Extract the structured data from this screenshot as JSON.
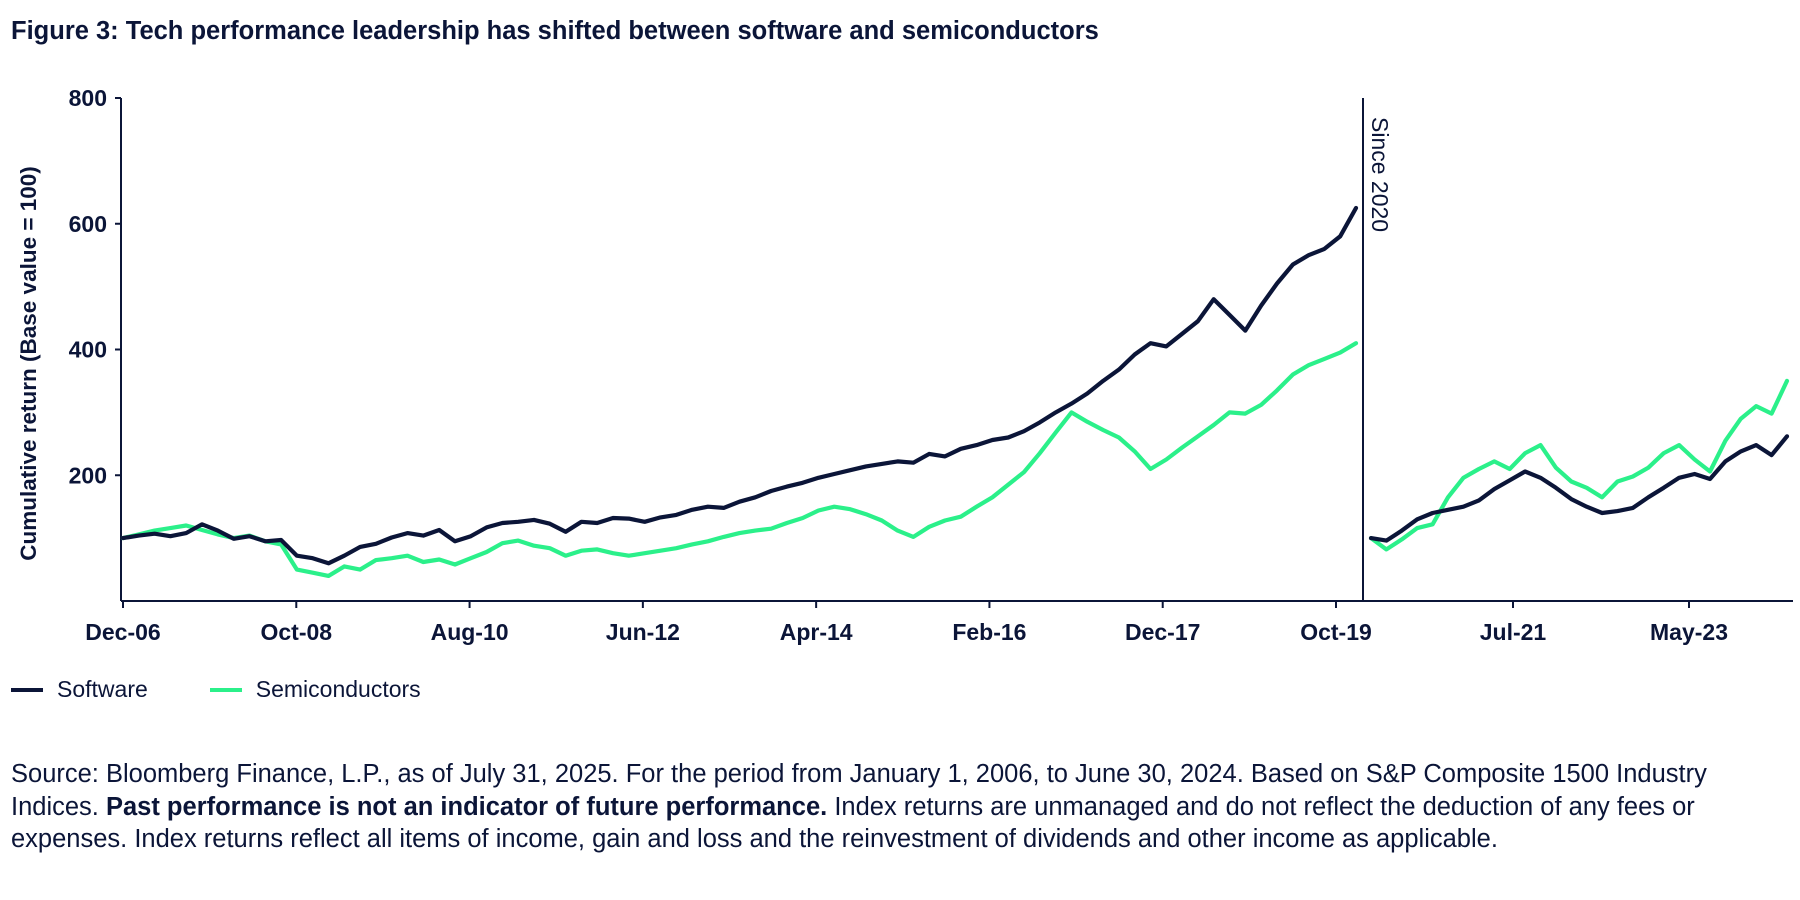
{
  "title": "Figure 3: Tech performance leadership has shifted between software and semiconductors",
  "legend": {
    "items": [
      {
        "label": "Software",
        "color": "#0b1538"
      },
      {
        "label": "Semiconductors",
        "color": "#2bf08a"
      }
    ]
  },
  "source": {
    "part1": "Source: Bloomberg Finance, L.P., as of July 31, 2025. For the period from January 1, 2006, to June 30, 2024. Based on S&P Composite 1500 Industry Indices.",
    "bold": "Past performance is not an indicator of future performance.",
    "part2": "Index returns are unmanaged and do not reflect the deduction of any fees or expenses. Index returns reflect all items of income, gain and loss and the reinvestment of dividends and other income as applicable."
  },
  "chart_data": {
    "type": "line",
    "ylabel": "Cumulative return (Base value = 100)",
    "xlabel": "",
    "ylim": [
      0,
      800
    ],
    "yticks": [
      200,
      400,
      600,
      800
    ],
    "grid": false,
    "legend_position": "bottom-left",
    "xticks": [
      "Dec-06",
      "Oct-08",
      "Aug-10",
      "Jun-12",
      "Apr-14",
      "Feb-16",
      "Dec-17",
      "Oct-19",
      "Jul-21",
      "May-23"
    ],
    "annotation": {
      "label": "Since 2020",
      "placement": "between Oct-19 and Jul-21, separating the two periods"
    },
    "series": [
      {
        "name": "Software",
        "color": "#0b1538",
        "segments": [
          {
            "period": "Dec-06 to Jan-20",
            "x": [
              "Dec-06",
              "Feb-07",
              "Apr-07",
              "Jun-07",
              "Aug-07",
              "Oct-07",
              "Dec-07",
              "Feb-08",
              "Apr-08",
              "Jun-08",
              "Aug-08",
              "Oct-08",
              "Dec-08",
              "Feb-09",
              "Apr-09",
              "Jun-09",
              "Aug-09",
              "Oct-09",
              "Dec-09",
              "Feb-10",
              "Apr-10",
              "Jun-10",
              "Aug-10",
              "Oct-10",
              "Dec-10",
              "Feb-11",
              "Apr-11",
              "Jun-11",
              "Aug-11",
              "Oct-11",
              "Dec-11",
              "Feb-12",
              "Apr-12",
              "Jun-12",
              "Aug-12",
              "Oct-12",
              "Dec-12",
              "Feb-13",
              "Apr-13",
              "Jun-13",
              "Aug-13",
              "Oct-13",
              "Dec-13",
              "Feb-14",
              "Apr-14",
              "Jun-14",
              "Aug-14",
              "Oct-14",
              "Dec-14",
              "Feb-15",
              "Apr-15",
              "Jun-15",
              "Aug-15",
              "Oct-15",
              "Dec-15",
              "Feb-16",
              "Apr-16",
              "Jun-16",
              "Aug-16",
              "Oct-16",
              "Dec-16",
              "Feb-17",
              "Apr-17",
              "Jun-17",
              "Aug-17",
              "Oct-17",
              "Dec-17",
              "Feb-18",
              "Apr-18",
              "Jun-18",
              "Aug-18",
              "Oct-18",
              "Dec-18",
              "Feb-19",
              "Apr-19",
              "Jun-19",
              "Aug-19",
              "Oct-19",
              "Jan-20"
            ],
            "values": [
              100,
              104,
              107,
              103,
              108,
              122,
              112,
              99,
              103,
              95,
              97,
              72,
              68,
              60,
              72,
              86,
              91,
              101,
              108,
              104,
              113,
              95,
              103,
              117,
              124,
              126,
              129,
              123,
              110,
              126,
              124,
              132,
              131,
              126,
              133,
              137,
              145,
              150,
              148,
              158,
              165,
              175,
              182,
              188,
              196,
              202,
              208,
              214,
              218,
              222,
              220,
              234,
              230,
              242,
              248,
              256,
              260,
              270,
              284,
              300,
              314,
              330,
              350,
              368,
              392,
              410,
              405,
              425,
              445,
              480,
              455,
              430,
              470,
              505,
              535,
              550,
              560,
              580,
              625
            ]
          },
          {
            "period": "Jan-20 to Jun-24",
            "x": [
              "Jan-20",
              "Mar-20",
              "May-20",
              "Jul-20",
              "Sep-20",
              "Nov-20",
              "Jan-21",
              "Mar-21",
              "May-21",
              "Jul-21",
              "Sep-21",
              "Nov-21",
              "Jan-22",
              "Mar-22",
              "May-22",
              "Jul-22",
              "Sep-22",
              "Nov-22",
              "Jan-23",
              "Mar-23",
              "May-23",
              "Jul-23",
              "Sep-23",
              "Nov-23",
              "Jan-24",
              "Mar-24",
              "May-24",
              "Jun-24"
            ],
            "values": [
              100,
              96,
              112,
              130,
              140,
              145,
              150,
              160,
              178,
              192,
              206,
              196,
              180,
              162,
              150,
              140,
              143,
              148,
              165,
              180,
              196,
              202,
              194,
              222,
              238,
              248,
              232,
              262
            ]
          }
        ]
      },
      {
        "name": "Semiconductors",
        "color": "#2bf08a",
        "segments": [
          {
            "period": "Dec-06 to Jan-20",
            "x": [
              "Dec-06",
              "Feb-07",
              "Apr-07",
              "Jun-07",
              "Aug-07",
              "Oct-07",
              "Dec-07",
              "Feb-08",
              "Apr-08",
              "Jun-08",
              "Aug-08",
              "Oct-08",
              "Dec-08",
              "Feb-09",
              "Apr-09",
              "Jun-09",
              "Aug-09",
              "Oct-09",
              "Dec-09",
              "Feb-10",
              "Apr-10",
              "Jun-10",
              "Aug-10",
              "Oct-10",
              "Dec-10",
              "Feb-11",
              "Apr-11",
              "Jun-11",
              "Aug-11",
              "Oct-11",
              "Dec-11",
              "Feb-12",
              "Apr-12",
              "Jun-12",
              "Aug-12",
              "Oct-12",
              "Dec-12",
              "Feb-13",
              "Apr-13",
              "Jun-13",
              "Aug-13",
              "Oct-13",
              "Dec-13",
              "Feb-14",
              "Apr-14",
              "Jun-14",
              "Aug-14",
              "Oct-14",
              "Dec-14",
              "Feb-15",
              "Apr-15",
              "Jun-15",
              "Aug-15",
              "Oct-15",
              "Dec-15",
              "Feb-16",
              "Apr-16",
              "Jun-16",
              "Aug-16",
              "Oct-16",
              "Dec-16",
              "Feb-17",
              "Apr-17",
              "Jun-17",
              "Aug-17",
              "Oct-17",
              "Dec-17",
              "Feb-18",
              "Apr-18",
              "Jun-18",
              "Aug-18",
              "Oct-18",
              "Dec-18",
              "Feb-19",
              "Apr-19",
              "Jun-19",
              "Aug-19",
              "Oct-19",
              "Jan-20"
            ],
            "values": [
              100,
              106,
              112,
              116,
              120,
              113,
              106,
              100,
              104,
              95,
              90,
              50,
              45,
              40,
              55,
              50,
              65,
              68,
              72,
              62,
              66,
              58,
              68,
              78,
              92,
              96,
              88,
              84,
              72,
              80,
              82,
              76,
              72,
              76,
              80,
              84,
              90,
              95,
              102,
              108,
              112,
              115,
              124,
              132,
              144,
              150,
              146,
              138,
              128,
              112,
              102,
              118,
              128,
              134,
              150,
              165,
              185,
              205,
              235,
              268,
              300,
              285,
              272,
              260,
              238,
              210,
              225,
              244,
              262,
              280,
              300,
              298,
              312,
              335,
              360,
              375,
              385,
              395,
              410
            ]
          },
          {
            "period": "Jan-20 to Jun-24",
            "x": [
              "Jan-20",
              "Mar-20",
              "May-20",
              "Jul-20",
              "Sep-20",
              "Nov-20",
              "Jan-21",
              "Mar-21",
              "May-21",
              "Jul-21",
              "Sep-21",
              "Nov-21",
              "Jan-22",
              "Mar-22",
              "May-22",
              "Jul-22",
              "Sep-22",
              "Nov-22",
              "Jan-23",
              "Mar-23",
              "May-23",
              "Jul-23",
              "Sep-23",
              "Nov-23",
              "Jan-24",
              "Mar-24",
              "May-24",
              "Jun-24"
            ],
            "values": [
              100,
              82,
              98,
              116,
              122,
              165,
              196,
              210,
              222,
              210,
              235,
              248,
              212,
              190,
              180,
              165,
              190,
              198,
              212,
              235,
              248,
              225,
              206,
              255,
              290,
              310,
              298,
              350
            ]
          }
        ]
      }
    ]
  }
}
